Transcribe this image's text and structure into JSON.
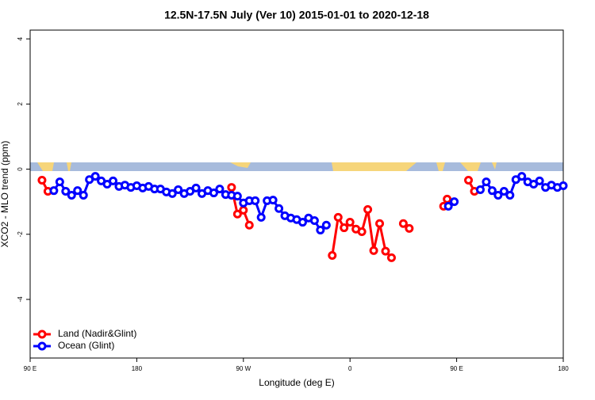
{
  "chart_data": {
    "type": "line",
    "title": "12.5N-17.5N July (Ver 10)   2015-01-01 to 2020-12-18",
    "x_label": "Longitude (deg E)",
    "y_label": "XCO2 - MLO trend (ppm)",
    "xlim": [
      90,
      540
    ],
    "ylim": [
      -5.8,
      4.27
    ],
    "xticks": [
      {
        "value": 90,
        "label": "90 E"
      },
      180,
      {
        "value": 270,
        "label": "90 W"
      },
      {
        "value": 360,
        "label": "0"
      },
      {
        "value": 450,
        "label": "90 E"
      },
      {
        "value": 540,
        "label": "180"
      }
    ],
    "yticks": [
      -4,
      -2,
      0,
      2,
      4
    ],
    "legend": "bottom-left",
    "series": [
      {
        "name": "Land (Nadir&Glint)",
        "color": "#ff0000",
        "x": [
          100,
          105,
          180,
          260,
          265,
          270,
          275,
          310,
          345,
          350,
          355,
          360,
          365,
          370,
          375,
          380,
          385,
          390,
          395,
          400,
          405,
          410,
          425,
          439,
          442,
          450,
          460,
          465
        ],
        "values": [
          -0.34,
          -0.68,
          null,
          -0.56,
          -1.38,
          -1.26,
          -1.72,
          null,
          -2.65,
          -1.48,
          -1.8,
          -1.63,
          -1.84,
          -1.92,
          -1.24,
          -2.5,
          -1.67,
          -2.52,
          -2.72,
          null,
          -1.67,
          -1.82,
          null,
          -1.14,
          -0.92,
          null,
          -0.34,
          -0.68
        ]
      },
      {
        "name": "Ocean (Glint)",
        "color": "#0000ff",
        "x": [
          110,
          115,
          120,
          125,
          130,
          135,
          140,
          145,
          150,
          155,
          160,
          165,
          170,
          175,
          180,
          185,
          190,
          195,
          200,
          205,
          210,
          215,
          220,
          225,
          230,
          235,
          240,
          245,
          250,
          255,
          260,
          265,
          270,
          275,
          280,
          285,
          290,
          295,
          300,
          305,
          310,
          315,
          320,
          325,
          330,
          335,
          340,
          390,
          443,
          448,
          458,
          470,
          475,
          480,
          485,
          490,
          495,
          500,
          505,
          510,
          515,
          520,
          525,
          530,
          535,
          540
        ],
        "values": [
          -0.66,
          -0.39,
          -0.68,
          -0.8,
          -0.66,
          -0.8,
          -0.32,
          -0.22,
          -0.36,
          -0.46,
          -0.36,
          -0.53,
          -0.49,
          -0.56,
          -0.51,
          -0.58,
          -0.53,
          -0.61,
          -0.61,
          -0.7,
          -0.75,
          -0.63,
          -0.75,
          -0.68,
          -0.58,
          -0.75,
          -0.66,
          -0.73,
          -0.61,
          -0.78,
          -0.8,
          -0.83,
          -1.04,
          -0.97,
          -0.97,
          -1.48,
          -0.97,
          -0.95,
          -1.21,
          -1.43,
          -1.5,
          -1.55,
          -1.63,
          -1.5,
          -1.58,
          -1.87,
          -1.72,
          null,
          -1.14,
          -1.0,
          null,
          -0.63,
          -0.39,
          -0.66,
          -0.8,
          -0.68,
          -0.8,
          -0.32,
          -0.22,
          -0.39,
          -0.46,
          -0.36,
          -0.56,
          -0.49,
          -0.56,
          -0.51
        ]
      }
    ]
  }
}
